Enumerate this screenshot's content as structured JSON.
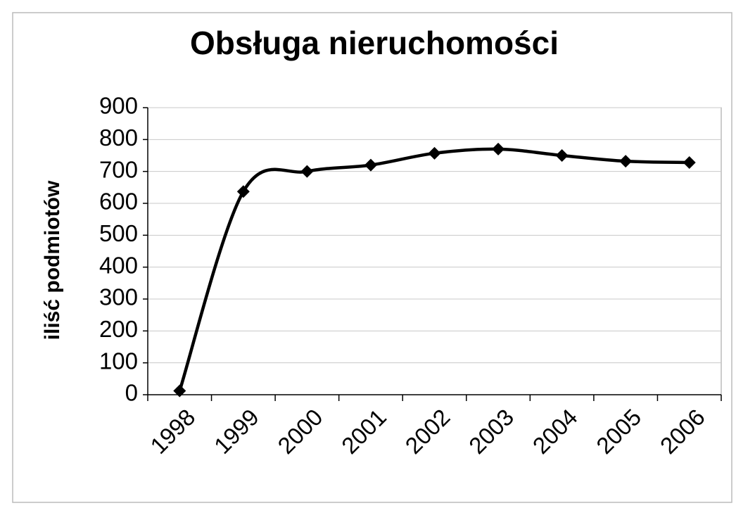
{
  "chart_data": {
    "type": "line",
    "title": "Obsługa nieruchomości",
    "y_label": "iliść podmiotów",
    "categories": [
      "1998",
      "1999",
      "2000",
      "2001",
      "2002",
      "2003",
      "2004",
      "2005",
      "2006"
    ],
    "series": [
      {
        "name": "ilość podmiotów",
        "color": "#000000",
        "values": [
          12,
          637,
          700,
          720,
          757,
          770,
          750,
          732,
          728
        ]
      }
    ],
    "ylim": [
      0,
      900
    ],
    "yticks": [
      0,
      100,
      200,
      300,
      400,
      500,
      600,
      700,
      800,
      900
    ],
    "grid": true,
    "smooth": true,
    "legend": false
  }
}
